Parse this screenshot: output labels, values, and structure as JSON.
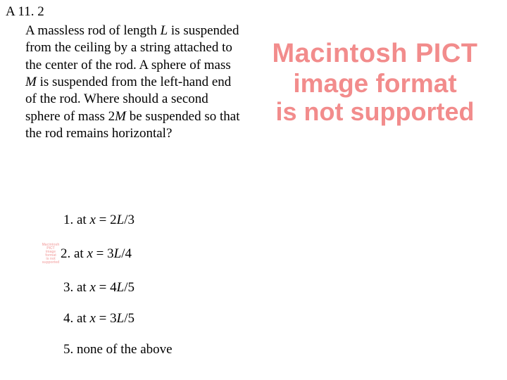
{
  "slide_label": "A 11. 2",
  "question": {
    "prefix": "A massless rod of length ",
    "var1": "L",
    "mid1": " is suspended from the ceiling by a string attached to the center of the rod. A sphere of mass ",
    "var2": "M",
    "mid2": " is suspended from the left-hand end of the rod. Where should a second sphere of mass 2",
    "var3": "M",
    "suffix": " be suspended so that the rod remains horizontal?"
  },
  "pict_error": {
    "line1": "Macintosh PICT",
    "line2": "image format",
    "line3": "is not supported"
  },
  "mini_pict": {
    "l1": "Macintosh PICT",
    "l2": "image format",
    "l3": "is not supported"
  },
  "answers": [
    {
      "num": "1. at ",
      "var": "x",
      "eq": " = 2",
      "lv": "L",
      "fr": "/3"
    },
    {
      "num": "2. at ",
      "var": "x",
      "eq": " = 3",
      "lv": "L",
      "fr": "/4"
    },
    {
      "num": "3. at ",
      "var": "x",
      "eq": " = 4",
      "lv": "L",
      "fr": "/5"
    },
    {
      "num": "4. at ",
      "var": "x",
      "eq": " = 3",
      "lv": "L",
      "fr": "/5"
    },
    {
      "num": "5. none of the above",
      "var": "",
      "eq": "",
      "lv": "",
      "fr": ""
    }
  ],
  "colors": {
    "text": "#000000",
    "error_text": "#f28c8c",
    "background": "#ffffff"
  }
}
